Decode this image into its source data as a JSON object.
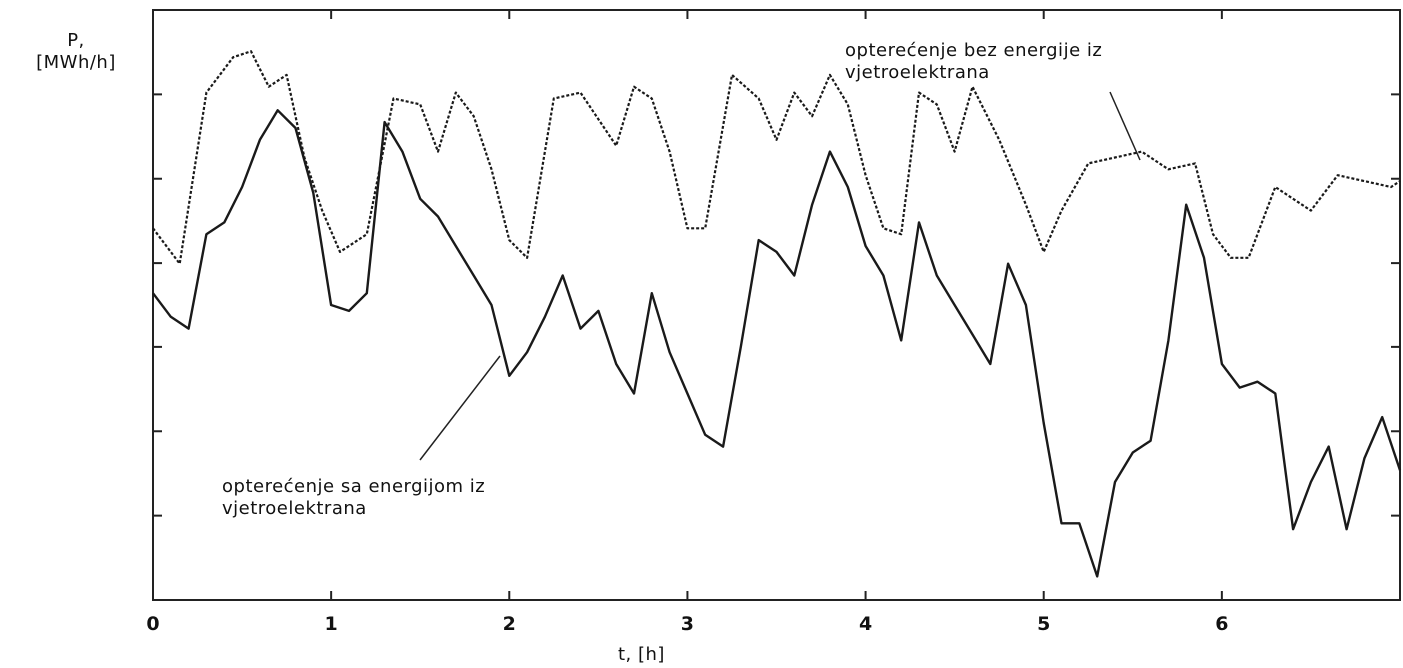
{
  "chart_data": {
    "type": "line",
    "ylabel_line1": "P,",
    "ylabel_line2": "[MWh/h]",
    "xlabel": "t, [h]",
    "xlim": [
      0,
      7
    ],
    "ylim": [
      0,
      1
    ],
    "x_ticks": [
      "0",
      "1",
      "2",
      "3",
      "4",
      "5",
      "6"
    ],
    "annotations": [
      {
        "line1": "opterećenje bez energije iz",
        "line2": "vjetroelektrana"
      },
      {
        "line1": "opterećenje sa energijom iz",
        "line2": "vjetroelektrana"
      }
    ],
    "series": [
      {
        "name": "opterećenje bez energije iz vjetroelektrana",
        "style": "dotted",
        "x": [
          0,
          0.15,
          0.3,
          0.45,
          0.55,
          0.65,
          0.75,
          0.85,
          0.95,
          1.05,
          1.2,
          1.35,
          1.5,
          1.6,
          1.7,
          1.8,
          1.9,
          2.0,
          2.1,
          2.25,
          2.4,
          2.6,
          2.7,
          2.8,
          2.9,
          3.0,
          3.1,
          3.25,
          3.4,
          3.5,
          3.6,
          3.7,
          3.8,
          3.9,
          4.0,
          4.1,
          4.2,
          4.3,
          4.4,
          4.5,
          4.6,
          4.75,
          4.9,
          5.0,
          5.1,
          5.25,
          5.4,
          5.55,
          5.7,
          5.85,
          5.95,
          6.05,
          6.15,
          6.3,
          6.4,
          6.5,
          6.65,
          6.8,
          6.95,
          7.0
        ],
        "y": [
          0.63,
          0.57,
          0.86,
          0.92,
          0.93,
          0.87,
          0.89,
          0.75,
          0.66,
          0.59,
          0.62,
          0.85,
          0.84,
          0.76,
          0.86,
          0.82,
          0.73,
          0.61,
          0.58,
          0.85,
          0.86,
          0.77,
          0.87,
          0.85,
          0.76,
          0.63,
          0.63,
          0.89,
          0.85,
          0.78,
          0.86,
          0.82,
          0.89,
          0.84,
          0.72,
          0.63,
          0.62,
          0.86,
          0.84,
          0.76,
          0.87,
          0.78,
          0.67,
          0.59,
          0.66,
          0.74,
          0.75,
          0.76,
          0.73,
          0.74,
          0.62,
          0.58,
          0.58,
          0.7,
          0.68,
          0.66,
          0.72,
          0.71,
          0.7,
          0.71
        ]
      },
      {
        "name": "opterećenje sa energijom iz vjetroelektrana",
        "style": "solid",
        "x": [
          0,
          0.1,
          0.2,
          0.3,
          0.4,
          0.5,
          0.6,
          0.7,
          0.8,
          0.9,
          1.0,
          1.1,
          1.2,
          1.3,
          1.4,
          1.5,
          1.6,
          1.7,
          1.8,
          1.9,
          2.0,
          2.1,
          2.2,
          2.3,
          2.4,
          2.5,
          2.6,
          2.7,
          2.8,
          2.9,
          3.0,
          3.1,
          3.2,
          3.3,
          3.4,
          3.5,
          3.6,
          3.7,
          3.8,
          3.9,
          4.0,
          4.1,
          4.2,
          4.3,
          4.4,
          4.5,
          4.6,
          4.7,
          4.8,
          4.9,
          5.0,
          5.1,
          5.2,
          5.3,
          5.4,
          5.5,
          5.6,
          5.7,
          5.8,
          5.9,
          6.0,
          6.1,
          6.2,
          6.3,
          6.4,
          6.5,
          6.6,
          6.7,
          6.8,
          6.9,
          7.0
        ],
        "y": [
          0.52,
          0.48,
          0.46,
          0.62,
          0.64,
          0.7,
          0.78,
          0.83,
          0.8,
          0.69,
          0.5,
          0.49,
          0.52,
          0.81,
          0.76,
          0.68,
          0.65,
          0.6,
          0.55,
          0.5,
          0.38,
          0.42,
          0.48,
          0.55,
          0.46,
          0.49,
          0.4,
          0.35,
          0.52,
          0.42,
          0.35,
          0.28,
          0.26,
          0.43,
          0.61,
          0.59,
          0.55,
          0.67,
          0.76,
          0.7,
          0.6,
          0.55,
          0.44,
          0.64,
          0.55,
          0.5,
          0.45,
          0.4,
          0.57,
          0.5,
          0.3,
          0.13,
          0.13,
          0.04,
          0.2,
          0.25,
          0.27,
          0.44,
          0.67,
          0.58,
          0.4,
          0.36,
          0.37,
          0.35,
          0.12,
          0.2,
          0.26,
          0.12,
          0.24,
          0.31,
          0.22
        ]
      }
    ]
  }
}
